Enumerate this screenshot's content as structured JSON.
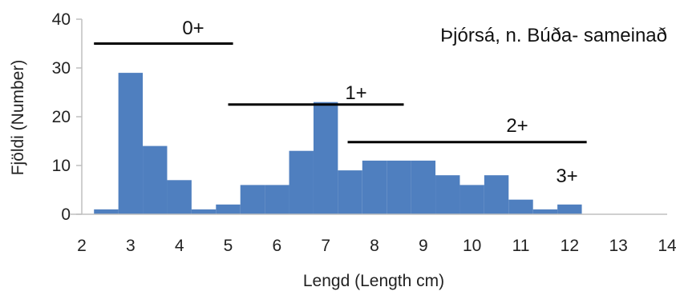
{
  "chart_data": {
    "type": "bar",
    "title": "Þjórsá, n. Búða- sameinað",
    "xlabel": "Lengd (Length cm)",
    "ylabel": "Fjöldi (Number)",
    "xlim": [
      2,
      14
    ],
    "ylim": [
      0,
      40
    ],
    "x_ticks": [
      2,
      3,
      4,
      5,
      6,
      7,
      8,
      9,
      10,
      11,
      12,
      13,
      14
    ],
    "y_ticks": [
      0,
      10,
      20,
      30,
      40
    ],
    "bin_width": 0.5,
    "bins": [
      {
        "start": 2.25,
        "value": 1
      },
      {
        "start": 2.75,
        "value": 29
      },
      {
        "start": 3.25,
        "value": 14
      },
      {
        "start": 3.75,
        "value": 7
      },
      {
        "start": 4.25,
        "value": 1
      },
      {
        "start": 4.75,
        "value": 2
      },
      {
        "start": 5.25,
        "value": 6
      },
      {
        "start": 5.75,
        "value": 6
      },
      {
        "start": 6.25,
        "value": 13
      },
      {
        "start": 6.75,
        "value": 23
      },
      {
        "start": 7.25,
        "value": 9
      },
      {
        "start": 7.75,
        "value": 11
      },
      {
        "start": 8.25,
        "value": 11
      },
      {
        "start": 8.75,
        "value": 11
      },
      {
        "start": 9.25,
        "value": 8
      },
      {
        "start": 9.75,
        "value": 6
      },
      {
        "start": 10.25,
        "value": 8
      },
      {
        "start": 10.75,
        "value": 3
      },
      {
        "start": 11.25,
        "value": 1
      },
      {
        "start": 11.75,
        "value": 2
      }
    ],
    "age_groups": [
      {
        "label": "0+",
        "x_start": 2.25,
        "x_end": 5.1,
        "y": 35
      },
      {
        "label": "1+",
        "x_start": 5.0,
        "x_end": 8.6,
        "y": 22.5
      },
      {
        "label": "2+",
        "x_start": 7.45,
        "x_end": 12.35,
        "y": 14.8
      },
      {
        "label": "3+",
        "x_start": null,
        "x_end": null,
        "y": null
      }
    ],
    "bar_color": "#4F7FBF",
    "axis_color": "#bfbfbf",
    "bracket_color": "#000000",
    "grid": false
  }
}
